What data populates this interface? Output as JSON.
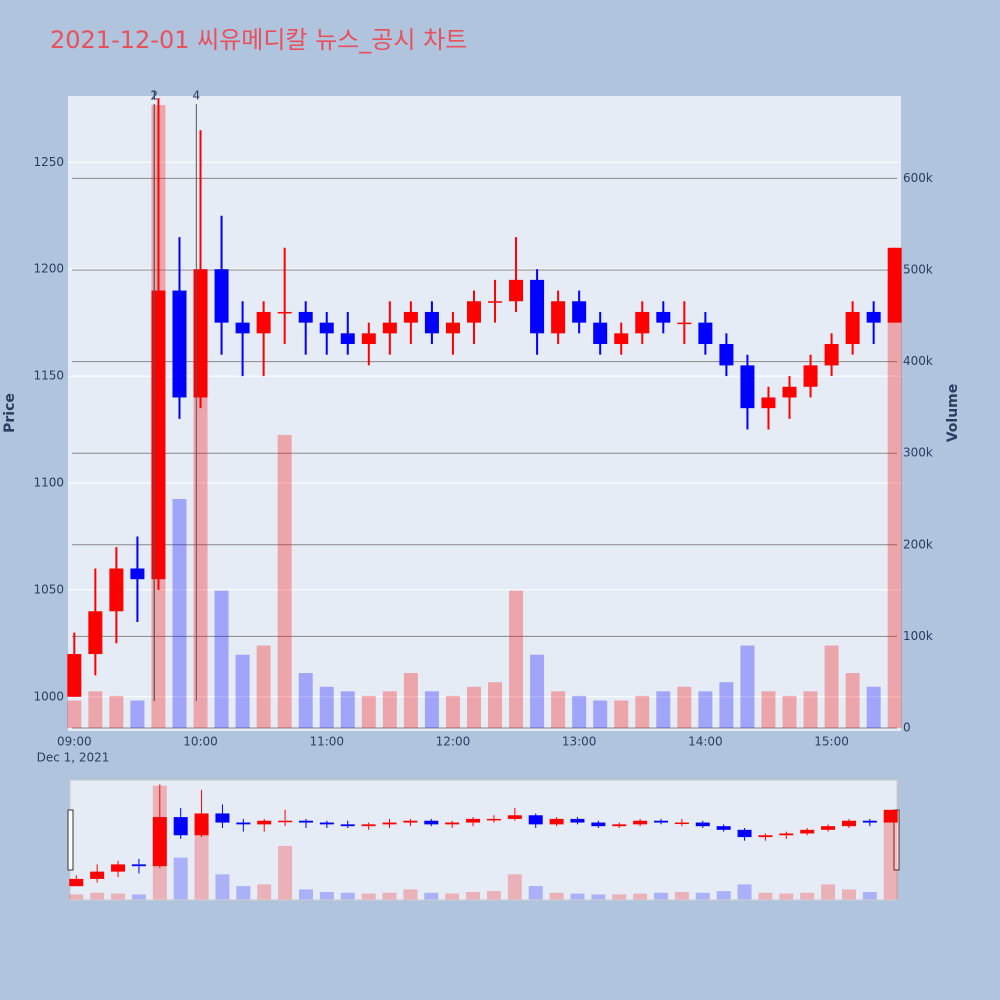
{
  "chart_data": {
    "type": "candlestick",
    "title": "2021-12-01 씨유메디칼 뉴스_공시 차트",
    "y_title": "Price",
    "y2_title": "Volume",
    "x_date_label": "Dec 1, 2021",
    "up_color": "#ff0000",
    "down_color": "#0000ff",
    "x": [
      "2021-12-01 09:00",
      "2021-12-01 09:10",
      "2021-12-01 09:20",
      "2021-12-01 09:30",
      "2021-12-01 09:40",
      "2021-12-01 09:50",
      "2021-12-01 10:00",
      "2021-12-01 10:10",
      "2021-12-01 10:20",
      "2021-12-01 10:30",
      "2021-12-01 10:40",
      "2021-12-01 10:50",
      "2021-12-01 11:00",
      "2021-12-01 11:10",
      "2021-12-01 11:20",
      "2021-12-01 11:30",
      "2021-12-01 11:40",
      "2021-12-01 11:50",
      "2021-12-01 12:00",
      "2021-12-01 12:10",
      "2021-12-01 12:20",
      "2021-12-01 12:30",
      "2021-12-01 12:40",
      "2021-12-01 12:50",
      "2021-12-01 13:00",
      "2021-12-01 13:10",
      "2021-12-01 13:20",
      "2021-12-01 13:30",
      "2021-12-01 13:40",
      "2021-12-01 13:50",
      "2021-12-01 14:00",
      "2021-12-01 14:10",
      "2021-12-01 14:20",
      "2021-12-01 14:30",
      "2021-12-01 14:40",
      "2021-12-01 14:50",
      "2021-12-01 15:00",
      "2021-12-01 15:10",
      "2021-12-01 15:20",
      "2021-12-01 15:30"
    ],
    "open": [
      1000,
      1020,
      1040,
      1060,
      1055,
      1190,
      1140,
      1200,
      1175,
      1170,
      1180,
      1180,
      1175,
      1170,
      1165,
      1170,
      1175,
      1180,
      1170,
      1175,
      1185,
      1185,
      1195,
      1170,
      1185,
      1175,
      1165,
      1170,
      1180,
      1175,
      1175,
      1165,
      1155,
      1135,
      1140,
      1145,
      1155,
      1165,
      1180,
      1175
    ],
    "high": [
      1030,
      1060,
      1070,
      1075,
      1280,
      1215,
      1265,
      1225,
      1185,
      1185,
      1210,
      1185,
      1180,
      1180,
      1175,
      1185,
      1185,
      1185,
      1180,
      1190,
      1195,
      1215,
      1200,
      1190,
      1190,
      1180,
      1175,
      1185,
      1185,
      1185,
      1180,
      1170,
      1160,
      1145,
      1150,
      1160,
      1170,
      1185,
      1185,
      1210
    ],
    "low": [
      1000,
      1010,
      1025,
      1035,
      1050,
      1130,
      1135,
      1160,
      1150,
      1150,
      1165,
      1160,
      1160,
      1160,
      1155,
      1160,
      1165,
      1165,
      1160,
      1165,
      1175,
      1180,
      1160,
      1165,
      1170,
      1160,
      1160,
      1165,
      1170,
      1165,
      1160,
      1150,
      1125,
      1125,
      1130,
      1140,
      1150,
      1160,
      1165,
      1175
    ],
    "close": [
      1020,
      1040,
      1060,
      1055,
      1190,
      1140,
      1200,
      1175,
      1170,
      1180,
      1180,
      1175,
      1170,
      1165,
      1170,
      1175,
      1180,
      1170,
      1175,
      1185,
      1185,
      1195,
      1170,
      1185,
      1175,
      1165,
      1170,
      1180,
      1175,
      1175,
      1165,
      1155,
      1135,
      1140,
      1145,
      1155,
      1165,
      1180,
      1175,
      1210
    ],
    "volume": [
      30000,
      40000,
      35000,
      30000,
      680000,
      250000,
      450000,
      150000,
      80000,
      90000,
      320000,
      60000,
      45000,
      40000,
      35000,
      40000,
      60000,
      40000,
      35000,
      45000,
      50000,
      150000,
      80000,
      40000,
      35000,
      30000,
      30000,
      35000,
      40000,
      45000,
      40000,
      50000,
      90000,
      40000,
      35000,
      40000,
      90000,
      60000,
      45000,
      490000
    ],
    "xlim": [
      "2021-12-01 08:57",
      "2021-12-01 15:33"
    ],
    "xticks": [
      {
        "value": "2021-12-01 09:00",
        "label": "09:00"
      },
      {
        "value": "2021-12-01 10:00",
        "label": "10:00"
      },
      {
        "value": "2021-12-01 11:00",
        "label": "11:00"
      },
      {
        "value": "2021-12-01 12:00",
        "label": "12:00"
      },
      {
        "value": "2021-12-01 13:00",
        "label": "13:00"
      },
      {
        "value": "2021-12-01 14:00",
        "label": "14:00"
      },
      {
        "value": "2021-12-01 15:00",
        "label": "15:00"
      }
    ],
    "ylim": [
      984,
      1281
    ],
    "yticks": [
      1000,
      1050,
      1100,
      1150,
      1200,
      1250
    ],
    "y2lim": [
      -3300,
      690000
    ],
    "y2ticks": [
      {
        "value": 0,
        "label": "0"
      },
      {
        "value": 100000,
        "label": "100k"
      },
      {
        "value": 200000,
        "label": "200k"
      },
      {
        "value": 300000,
        "label": "300k"
      },
      {
        "value": 400000,
        "label": "400k"
      },
      {
        "value": 500000,
        "label": "500k"
      },
      {
        "value": 600000,
        "label": "600k"
      }
    ],
    "annotations": [
      {
        "x": "2021-12-01 09:38",
        "text": "1"
      },
      {
        "x": "2021-12-01 09:38",
        "text": "2"
      },
      {
        "x": "2021-12-01 09:58",
        "text": "4"
      }
    ],
    "grid": true,
    "rangeslider": true
  }
}
